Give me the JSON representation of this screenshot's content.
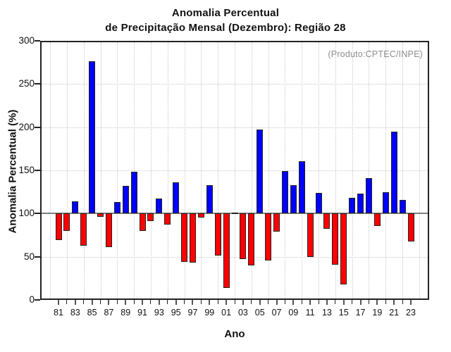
{
  "title": {
    "line1": "Anomalia Percentual",
    "line2": "de Precipitação Mensal (Dezembro): Região 28"
  },
  "annotation": {
    "text": "(Produto:CPTEC/INPE)",
    "color": "#8e8e8e"
  },
  "x_axis": {
    "label": "Ano",
    "tick_labels": [
      "81",
      "83",
      "85",
      "87",
      "89",
      "91",
      "93",
      "95",
      "97",
      "99",
      "01",
      "03",
      "05",
      "07",
      "09",
      "11",
      "13",
      "15",
      "17",
      "19",
      "21",
      "23"
    ]
  },
  "y_axis": {
    "label": "Anomalia Percentual (%)",
    "tick_labels": [
      "0",
      "50",
      "100",
      "150",
      "200",
      "250",
      "300"
    ]
  },
  "chart_data": {
    "type": "bar",
    "title": "Anomalia Percentual de Precipitação Mensal (Dezembro): Região 28",
    "xlabel": "Ano",
    "ylabel": "Anomalia Percentual (%)",
    "ylim": [
      0,
      300
    ],
    "yticks": [
      0,
      50,
      100,
      150,
      200,
      250,
      300
    ],
    "baseline": 100,
    "grid": true,
    "categories": [
      "81",
      "82",
      "83",
      "84",
      "85",
      "86",
      "87",
      "88",
      "89",
      "90",
      "91",
      "92",
      "93",
      "94",
      "95",
      "96",
      "97",
      "98",
      "99",
      "00",
      "01",
      "02",
      "03",
      "04",
      "05",
      "06",
      "07",
      "08",
      "09",
      "10",
      "11",
      "12",
      "13",
      "14",
      "15",
      "16",
      "17",
      "18",
      "19",
      "20",
      "21",
      "22",
      "23"
    ],
    "values": [
      69,
      80,
      114,
      63,
      276,
      96,
      61,
      113,
      132,
      148,
      80,
      91,
      117,
      87,
      136,
      44,
      43,
      95,
      133,
      51,
      14,
      100,
      47,
      40,
      197,
      46,
      79,
      149,
      133,
      161,
      50,
      124,
      82,
      41,
      18,
      118,
      123,
      141,
      86,
      125,
      195,
      116,
      68
    ],
    "colors": {
      "above_baseline": "#0000ff",
      "below_baseline": "#ff0000",
      "bar_outline": "#222222",
      "baseline_line": "#7f7f7f",
      "grid_line": "#c9c9c9",
      "frame": "#222222",
      "annotation": "#8e8e8e"
    }
  }
}
